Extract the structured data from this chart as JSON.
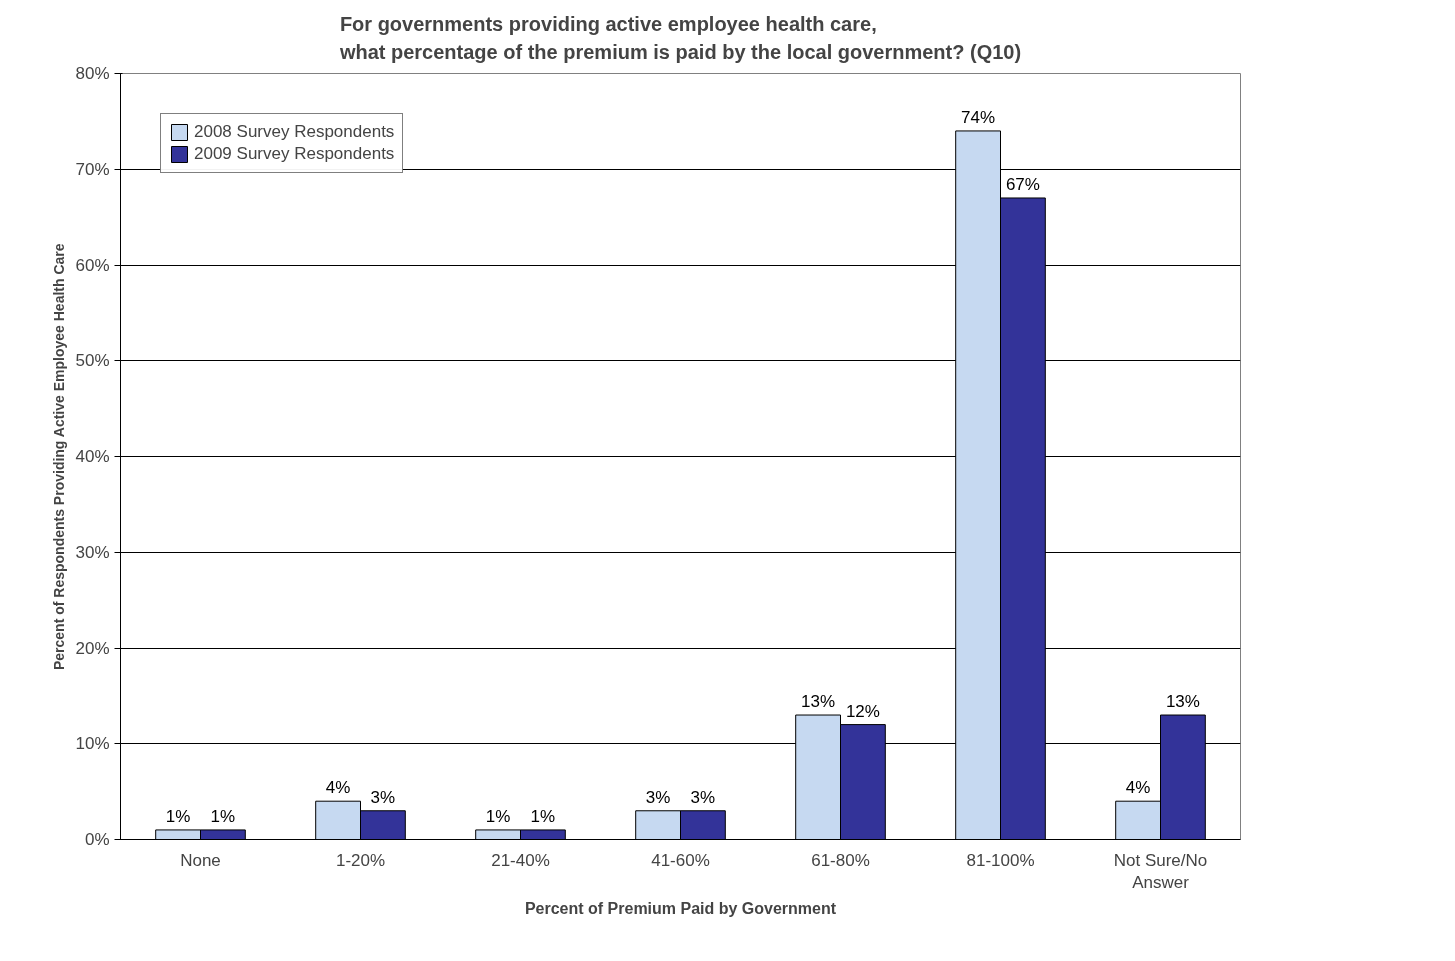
{
  "chart_data": {
    "type": "bar",
    "title": "For governments providing active employee health care,\nwhat percentage of the premium is paid by the local government? (Q10)",
    "xlabel": "Percent of Premium Paid by Government",
    "ylabel": "Percent of Respondents Providing Active Employee Health Care",
    "categories": [
      "None",
      "1-20%",
      "21-40%",
      "41-60%",
      "61-80%",
      "81-100%",
      "Not Sure/No Answer"
    ],
    "series": [
      {
        "name": "2008 Survey Respondents",
        "color": "#c6d9f1",
        "values": [
          1,
          4,
          1,
          3,
          13,
          74,
          4
        ],
        "value_labels": [
          "1%",
          "4%",
          "1%",
          "3%",
          "13%",
          "74%",
          "4%"
        ]
      },
      {
        "name": "2009 Survey Respondents",
        "color": "#333399",
        "values": [
          1,
          3,
          1,
          3,
          12,
          67,
          13
        ],
        "value_labels": [
          "1%",
          "3%",
          "1%",
          "3%",
          "12%",
          "67%",
          "13%"
        ]
      }
    ],
    "ylim": [
      0,
      80
    ],
    "yticks": [
      {
        "value": 0,
        "label": "0%"
      },
      {
        "value": 10,
        "label": "10%"
      },
      {
        "value": 20,
        "label": "20%"
      },
      {
        "value": 30,
        "label": "30%"
      },
      {
        "value": 40,
        "label": "40%"
      },
      {
        "value": 50,
        "label": "50%"
      },
      {
        "value": 60,
        "label": "60%"
      },
      {
        "value": 70,
        "label": "70%"
      },
      {
        "value": 80,
        "label": "80%"
      }
    ],
    "grid": "y",
    "legend": "top left"
  }
}
